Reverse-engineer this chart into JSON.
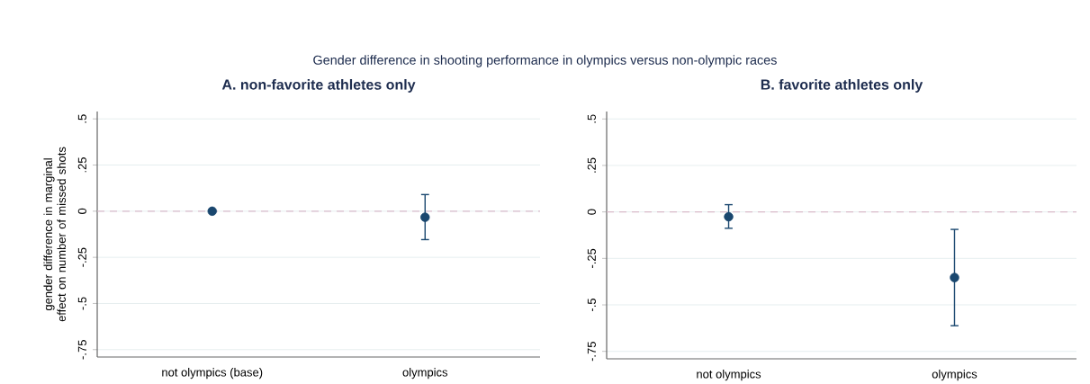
{
  "chart_data": [
    {
      "type": "other",
      "title": "Gender difference in shooting performance in olympics versus non-olympic races"
    },
    {
      "type": "scatter",
      "title": "A. non-favorite athletes only",
      "ylabel": "gender difference in marginal effect on number of missed shots",
      "categories": [
        "not olympics (base)",
        "olympics"
      ],
      "series": [
        {
          "color": "#1a476f",
          "values": [
            0,
            -0.033
          ],
          "errors": [
            null,
            [
              -0.154,
              0.09
            ]
          ]
        }
      ],
      "ylim": [
        -0.79,
        0.54
      ],
      "yticks": [
        {
          "value": 0.5,
          "label": ".5"
        },
        {
          "value": 0.25,
          "label": ".25"
        },
        0,
        {
          "value": -0.25,
          "label": "-.25"
        },
        {
          "value": -0.5,
          "label": "-.5"
        },
        {
          "value": -0.75,
          "label": "-.75"
        }
      ],
      "ref_lines": [
        {
          "axis": "y",
          "value": 0,
          "color": "#d9bccb",
          "line_style": "dashed"
        }
      ],
      "grid": "y",
      "marker": "circle"
    },
    {
      "type": "scatter",
      "title": "B. favorite athletes only",
      "categories": [
        "not olympics",
        "olympics"
      ],
      "series": [
        {
          "color": "#1a476f",
          "values": [
            -0.026,
            -0.353
          ],
          "errors": [
            [
              -0.088,
              0.039
            ],
            [
              -0.612,
              -0.094
            ]
          ]
        }
      ],
      "ylim": [
        -0.79,
        0.54
      ],
      "yticks": [
        {
          "value": 0.5,
          "label": ".5"
        },
        {
          "value": 0.25,
          "label": ".25"
        },
        0,
        {
          "value": -0.25,
          "label": "-.25"
        },
        {
          "value": -0.5,
          "label": "-.5"
        },
        {
          "value": -0.75,
          "label": "-.75"
        }
      ],
      "ref_lines": [
        {
          "axis": "y",
          "value": 0,
          "color": "#d9bccb",
          "line_style": "dashed"
        }
      ],
      "grid": "y",
      "marker": "circle"
    }
  ]
}
